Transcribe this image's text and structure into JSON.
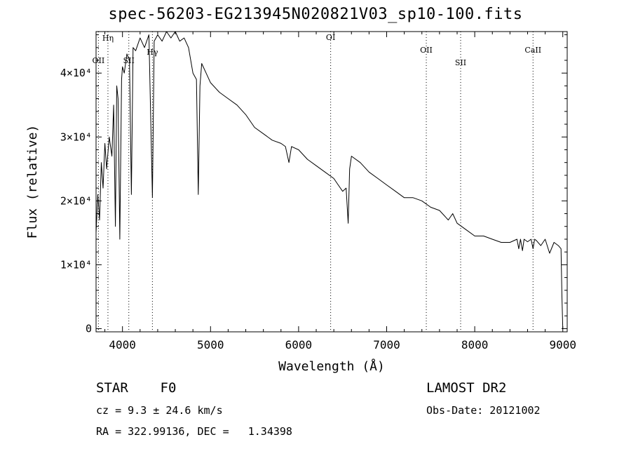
{
  "chart_data": {
    "type": "line",
    "title": "spec-56203-EG213945N020821V03_sp10-100.fits",
    "xlabel": "Wavelength (Å)",
    "ylabel": "Flux (relative)",
    "xlim": [
      3700,
      9050
    ],
    "ylim": [
      -500,
      46500
    ],
    "x_ticks": [
      4000,
      5000,
      6000,
      7000,
      8000,
      9000
    ],
    "y_ticks": [
      {
        "value": 0,
        "label": "0"
      },
      {
        "value": 10000,
        "label": "1×10⁴"
      },
      {
        "value": 20000,
        "label": "2×10⁴"
      },
      {
        "value": 30000,
        "label": "3×10⁴"
      },
      {
        "value": 40000,
        "label": "4×10⁴"
      }
    ],
    "grid": false,
    "legend": "none",
    "line_marks": [
      {
        "label": "OII",
        "x": 3727
      },
      {
        "label": "Hη",
        "x": 3835
      },
      {
        "label": "SII",
        "x": 4072
      },
      {
        "label": "Hγ",
        "x": 4340
      },
      {
        "label": "OI",
        "x": 6364
      },
      {
        "label": "OII",
        "x": 7450
      },
      {
        "label": "SII",
        "x": 7840
      },
      {
        "label": "CaII",
        "x": 8662
      }
    ],
    "series": [
      {
        "x": [
          3700,
          3720,
          3740,
          3760,
          3780,
          3800,
          3820,
          3850,
          3880,
          3900,
          3920,
          3935,
          3950,
          3970,
          3990,
          4000,
          4020,
          4050,
          4080,
          4101,
          4120,
          4150,
          4200,
          4250,
          4300,
          4340,
          4360,
          4400,
          4450,
          4500,
          4550,
          4600,
          4650,
          4700,
          4750,
          4800,
          4840,
          4861,
          4880,
          4900,
          4950,
          5000,
          5100,
          5200,
          5300,
          5400,
          5500,
          5600,
          5700,
          5800,
          5850,
          5890,
          5920,
          6000,
          6100,
          6200,
          6300,
          6400,
          6450,
          6500,
          6540,
          6563,
          6580,
          6600,
          6700,
          6800,
          6900,
          7000,
          7100,
          7200,
          7300,
          7400,
          7500,
          7600,
          7700,
          7750,
          7800,
          7900,
          8000,
          8100,
          8200,
          8300,
          8400,
          8480,
          8500,
          8520,
          8542,
          8560,
          8600,
          8640,
          8662,
          8680,
          8700,
          8750,
          8800,
          8850,
          8900,
          8950,
          8980,
          8990,
          9000
        ],
        "y": [
          15000,
          21000,
          17000,
          26000,
          22000,
          29000,
          25000,
          30000,
          27000,
          35000,
          16000,
          38000,
          36000,
          14000,
          39000,
          41000,
          40000,
          43000,
          42000,
          21000,
          44000,
          43500,
          45500,
          44000,
          46000,
          20500,
          45000,
          46000,
          45000,
          46500,
          45500,
          46500,
          45000,
          45500,
          44000,
          40000,
          39000,
          21000,
          38000,
          41500,
          40000,
          38500,
          37000,
          36000,
          35000,
          33500,
          31500,
          30500,
          29500,
          29000,
          28500,
          26000,
          28500,
          28000,
          26500,
          25500,
          24500,
          23500,
          22500,
          21500,
          22000,
          16500,
          25000,
          27000,
          26000,
          24500,
          23500,
          22500,
          21500,
          20500,
          20500,
          20000,
          19000,
          18500,
          17000,
          18000,
          16500,
          15500,
          14500,
          14500,
          14000,
          13500,
          13500,
          14000,
          12500,
          14000,
          12200,
          14000,
          13600,
          14000,
          12500,
          14000,
          13800,
          13000,
          14000,
          11800,
          13500,
          13000,
          12500,
          5000,
          0
        ]
      }
    ]
  },
  "footer": {
    "object_class": "STAR    F0",
    "survey": "LAMOST DR2",
    "cz": "cz = 9.3 ± 24.6 km/s",
    "obs_date": "Obs-Date: 20121002",
    "coords": "RA = 322.99136, DEC =   1.34398"
  }
}
